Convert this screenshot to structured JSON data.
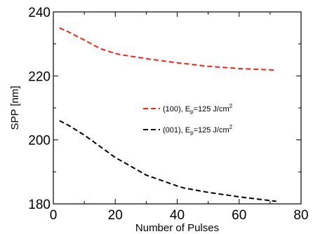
{
  "chart_data": {
    "type": "line",
    "xlabel": "Number of Pulses",
    "ylabel": "SPP [nm]",
    "xlim": [
      0,
      80
    ],
    "ylim": [
      180,
      240
    ],
    "xticks": [
      0,
      20,
      40,
      60,
      80
    ],
    "yticks": [
      180,
      200,
      220,
      240
    ],
    "xtick_labels": [
      "0",
      "20",
      "40",
      "60",
      "80"
    ],
    "ytick_labels": [
      "180",
      "200",
      "220",
      "240"
    ],
    "grid": false,
    "legend_position": "center-right",
    "series": [
      {
        "legend_main": "(100), E",
        "legend_sub": "p",
        "legend_tail": "=125 J/cm",
        "legend_sup": "2",
        "color": "#e8261c",
        "dash": "dashed",
        "x": [
          2,
          5,
          10,
          15,
          20,
          22,
          30,
          40,
          50,
          60,
          72
        ],
        "y": [
          235,
          233.7,
          231.2,
          228.6,
          227.0,
          226.6,
          225.4,
          224.1,
          223.0,
          222.3,
          221.8
        ]
      },
      {
        "legend_main": "(001), E",
        "legend_sub": "p",
        "legend_tail": "=125 J/cm",
        "legend_sup": "2",
        "color": "#000000",
        "dash": "dashed",
        "x": [
          2,
          5,
          10,
          15,
          20,
          22,
          30,
          40,
          42,
          50,
          60,
          72
        ],
        "y": [
          206,
          204.5,
          201.5,
          198.0,
          194.5,
          193.4,
          189.0,
          185.6,
          185.0,
          183.6,
          182.2,
          180.8
        ]
      }
    ]
  }
}
